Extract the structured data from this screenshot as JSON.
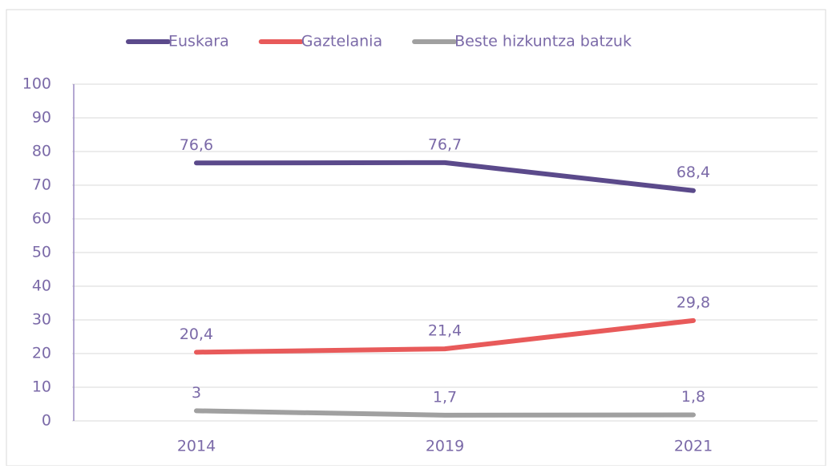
{
  "chart_data": {
    "type": "line",
    "categories": [
      "2014",
      "2019",
      "2021"
    ],
    "series": [
      {
        "name": "Euskara",
        "color": "#5b4a8b",
        "values": [
          76.6,
          76.7,
          68.4
        ],
        "value_labels": [
          "76,6",
          "76,7",
          "68,4"
        ]
      },
      {
        "name": "Gaztelania",
        "color": "#e85a5a",
        "values": [
          20.4,
          21.4,
          29.8
        ],
        "value_labels": [
          "20,4",
          "21,4",
          "29,8"
        ]
      },
      {
        "name": "Beste hizkuntza batzuk",
        "color": "#a0a0a0",
        "values": [
          3,
          1.7,
          1.8
        ],
        "value_labels": [
          "3",
          "1,7",
          "1,8"
        ]
      }
    ],
    "ylim": [
      0,
      100
    ],
    "yticks": [
      0,
      10,
      20,
      30,
      40,
      50,
      60,
      70,
      80,
      90,
      100
    ],
    "grid": true,
    "legend": "top"
  }
}
